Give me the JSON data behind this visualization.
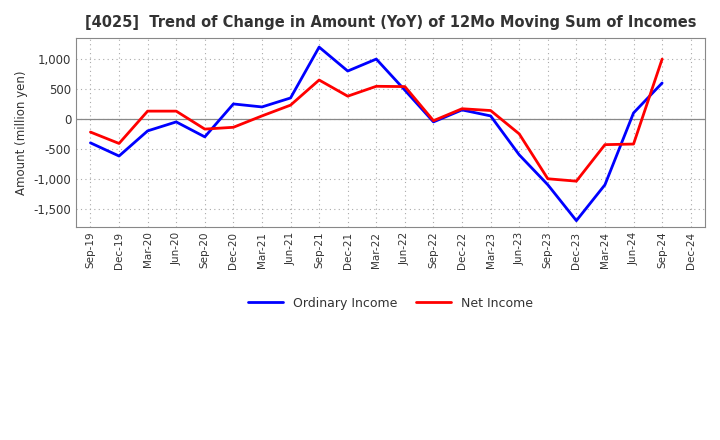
{
  "title": "[4025]  Trend of Change in Amount (YoY) of 12Mo Moving Sum of Incomes",
  "ylabel": "Amount (million yen)",
  "x_labels": [
    "Sep-19",
    "Dec-19",
    "Mar-20",
    "Jun-20",
    "Sep-20",
    "Dec-20",
    "Mar-21",
    "Jun-21",
    "Sep-21",
    "Dec-21",
    "Mar-22",
    "Jun-22",
    "Sep-22",
    "Dec-22",
    "Mar-23",
    "Jun-23",
    "Sep-23",
    "Dec-23",
    "Mar-24",
    "Jun-24",
    "Sep-24",
    "Dec-24"
  ],
  "ordinary_income": [
    -400,
    -620,
    -200,
    -50,
    -300,
    250,
    200,
    350,
    1200,
    800,
    1000,
    480,
    -50,
    150,
    50,
    -600,
    -1100,
    -1700,
    -1100,
    100,
    600,
    null
  ],
  "net_income": [
    -220,
    -410,
    130,
    130,
    -170,
    -140,
    50,
    230,
    650,
    380,
    545,
    540,
    -30,
    170,
    140,
    -250,
    -1000,
    -1040,
    -430,
    -420,
    1000,
    null
  ],
  "ordinary_color": "#0000FF",
  "net_color": "#FF0000",
  "ylim": [
    -1800,
    1350
  ],
  "yticks": [
    -1500,
    -1000,
    -500,
    0,
    500,
    1000
  ],
  "background": "#FFFFFF",
  "grid_color": "#AAAAAA",
  "title_color": "#333333"
}
